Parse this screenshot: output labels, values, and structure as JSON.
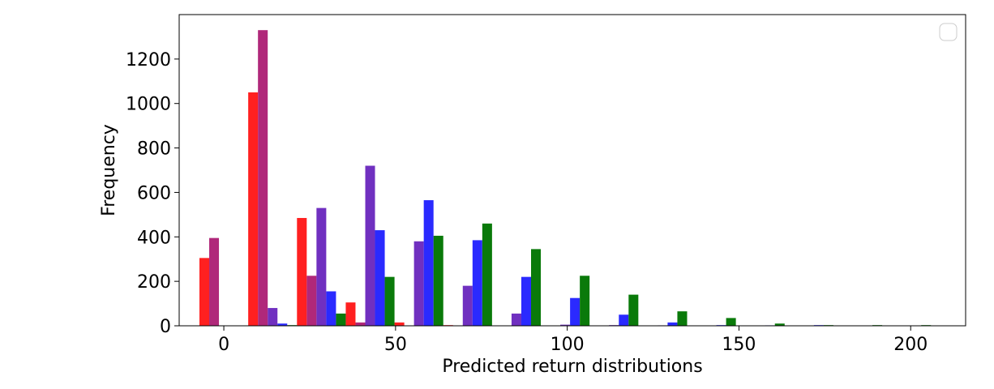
{
  "chart_data": {
    "type": "bar",
    "title": "",
    "xlabel": "Predicted return distributions",
    "ylabel": "Frequency",
    "xlim": [
      -13,
      216
    ],
    "ylim": [
      0,
      1400
    ],
    "xticks": [
      0,
      50,
      100,
      150,
      200
    ],
    "yticks": [
      0,
      200,
      400,
      600,
      800,
      1000,
      1200
    ],
    "bin_centers": [
      0,
      14.2,
      28.4,
      42.6,
      56.8,
      71.0,
      85.2,
      99.4,
      113.6,
      127.8,
      142.0,
      156.2,
      170.4,
      184.6,
      198.8
    ],
    "series": [
      {
        "color": "#ff2020",
        "values": [
          305,
          1050,
          485,
          105,
          15,
          3,
          0,
          0,
          0,
          0,
          0,
          0,
          0,
          0,
          0
        ]
      },
      {
        "color": "#b0287a",
        "values": [
          395,
          1330,
          225,
          15,
          0,
          0,
          0,
          0,
          0,
          0,
          0,
          0,
          0,
          0,
          0
        ]
      },
      {
        "color": "#7030c0",
        "values": [
          0,
          80,
          530,
          720,
          380,
          180,
          55,
          5,
          3,
          2,
          0,
          0,
          0,
          0,
          0
        ]
      },
      {
        "color": "#2a2aff",
        "values": [
          0,
          10,
          155,
          430,
          565,
          385,
          220,
          125,
          50,
          15,
          3,
          2,
          3,
          0,
          0
        ]
      },
      {
        "color": "#0a7a0a",
        "values": [
          0,
          3,
          55,
          220,
          405,
          460,
          345,
          225,
          140,
          65,
          35,
          10,
          3,
          3,
          3
        ]
      }
    ],
    "legend": {
      "placement": "upper right",
      "entries": []
    },
    "grid": false
  }
}
